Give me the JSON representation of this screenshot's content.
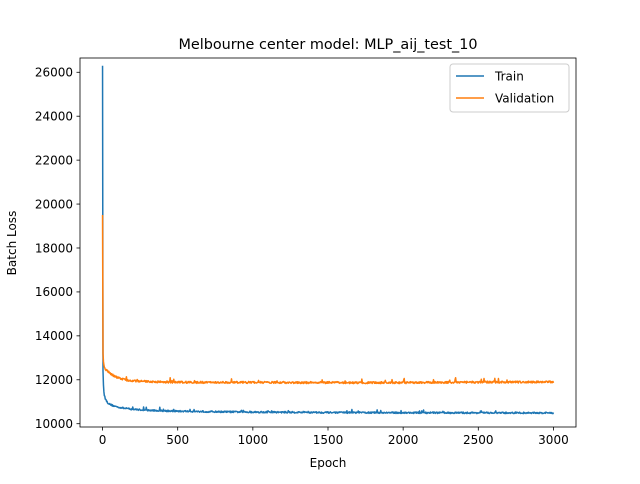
{
  "chart_data": {
    "type": "line",
    "title": "Melbourne center model:  MLP_aij_test_10",
    "xlabel": "Epoch",
    "ylabel": "Batch Loss",
    "xlim": [
      -150,
      3150
    ],
    "ylim": [
      9850,
      26650
    ],
    "xticks": [
      0,
      500,
      1000,
      1500,
      2000,
      2500,
      3000
    ],
    "xtick_labels": [
      "0",
      "500",
      "1000",
      "1500",
      "2000",
      "2500",
      "3000"
    ],
    "yticks": [
      10000,
      12000,
      14000,
      16000,
      18000,
      20000,
      22000,
      24000,
      26000
    ],
    "ytick_labels": [
      "10000",
      "12000",
      "14000",
      "16000",
      "18000",
      "20000",
      "22000",
      "24000",
      "26000"
    ],
    "legend_position": "top-right",
    "grid": false,
    "series": [
      {
        "name": "Train",
        "color": "#1f77b4",
        "x": [
          0,
          1,
          2,
          3,
          5,
          8,
          12,
          18,
          25,
          35,
          50,
          70,
          100,
          150,
          200,
          300,
          400,
          500,
          700,
          1000,
          1500,
          2000,
          2500,
          3000
        ],
        "y": [
          26300,
          15500,
          13200,
          12400,
          11900,
          11500,
          11300,
          11150,
          11050,
          10950,
          10880,
          10820,
          10760,
          10700,
          10660,
          10610,
          10590,
          10570,
          10550,
          10530,
          10510,
          10500,
          10495,
          10490
        ],
        "noise": 35
      },
      {
        "name": "Validation",
        "color": "#ff7f0e",
        "x": [
          0,
          1,
          2,
          3,
          5,
          8,
          12,
          18,
          25,
          35,
          50,
          70,
          100,
          150,
          200,
          300,
          400,
          500,
          700,
          1000,
          1500,
          2000,
          2500,
          3000
        ],
        "y": [
          19500,
          15200,
          13800,
          13200,
          12900,
          12700,
          12600,
          12500,
          12450,
          12400,
          12300,
          12200,
          12100,
          12000,
          11950,
          11920,
          11900,
          11890,
          11880,
          11880,
          11870,
          11870,
          11890,
          11900
        ],
        "noise": 45
      }
    ]
  }
}
